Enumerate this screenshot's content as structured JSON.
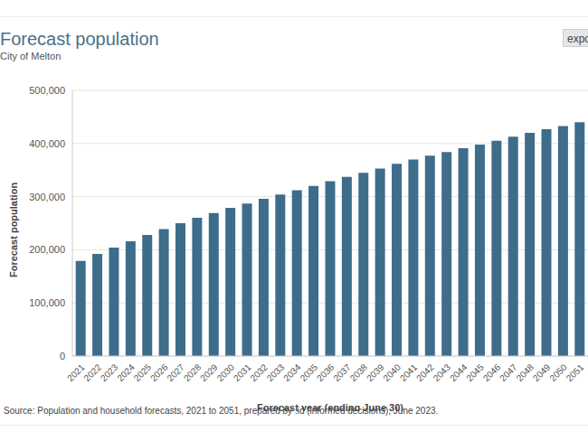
{
  "chart_data": {
    "type": "bar",
    "title": "Forecast population",
    "subtitle": "City of Melton",
    "button": "expo",
    "x_label": "Forecast year (ending June 30)",
    "y_label": "Forecast population",
    "source": "Source: Population and household forecasts, 2021 to 2051, prepared by .id (informed decisions), June 2023.",
    "categories": [
      "2021",
      "2022",
      "2023",
      "2024",
      "2025",
      "2026",
      "2027",
      "2028",
      "2029",
      "2030",
      "2031",
      "2032",
      "2033",
      "2034",
      "2035",
      "2036",
      "2037",
      "2038",
      "2039",
      "2040",
      "2041",
      "2042",
      "2043",
      "2044",
      "2045",
      "2046",
      "2047",
      "2048",
      "2049",
      "2050",
      "2051"
    ],
    "values": [
      179000,
      192000,
      204000,
      216000,
      228000,
      239000,
      250000,
      260000,
      269000,
      279000,
      287000,
      296000,
      304000,
      312000,
      320000,
      329000,
      337000,
      345000,
      353000,
      362000,
      370000,
      377000,
      384000,
      391000,
      398000,
      405000,
      413000,
      420000,
      427000,
      433000,
      440000
    ],
    "color": "#3e6d8c",
    "ylim": [
      0,
      500000
    ],
    "yticks": [
      0,
      {
        "value": 100000,
        "label": "100,000"
      },
      {
        "value": 200000,
        "label": "200,000"
      },
      {
        "value": 300000,
        "label": "300,000"
      },
      {
        "value": 400000,
        "label": "400,000"
      },
      {
        "value": 500000,
        "label": "500,000"
      }
    ],
    "grid": true
  }
}
